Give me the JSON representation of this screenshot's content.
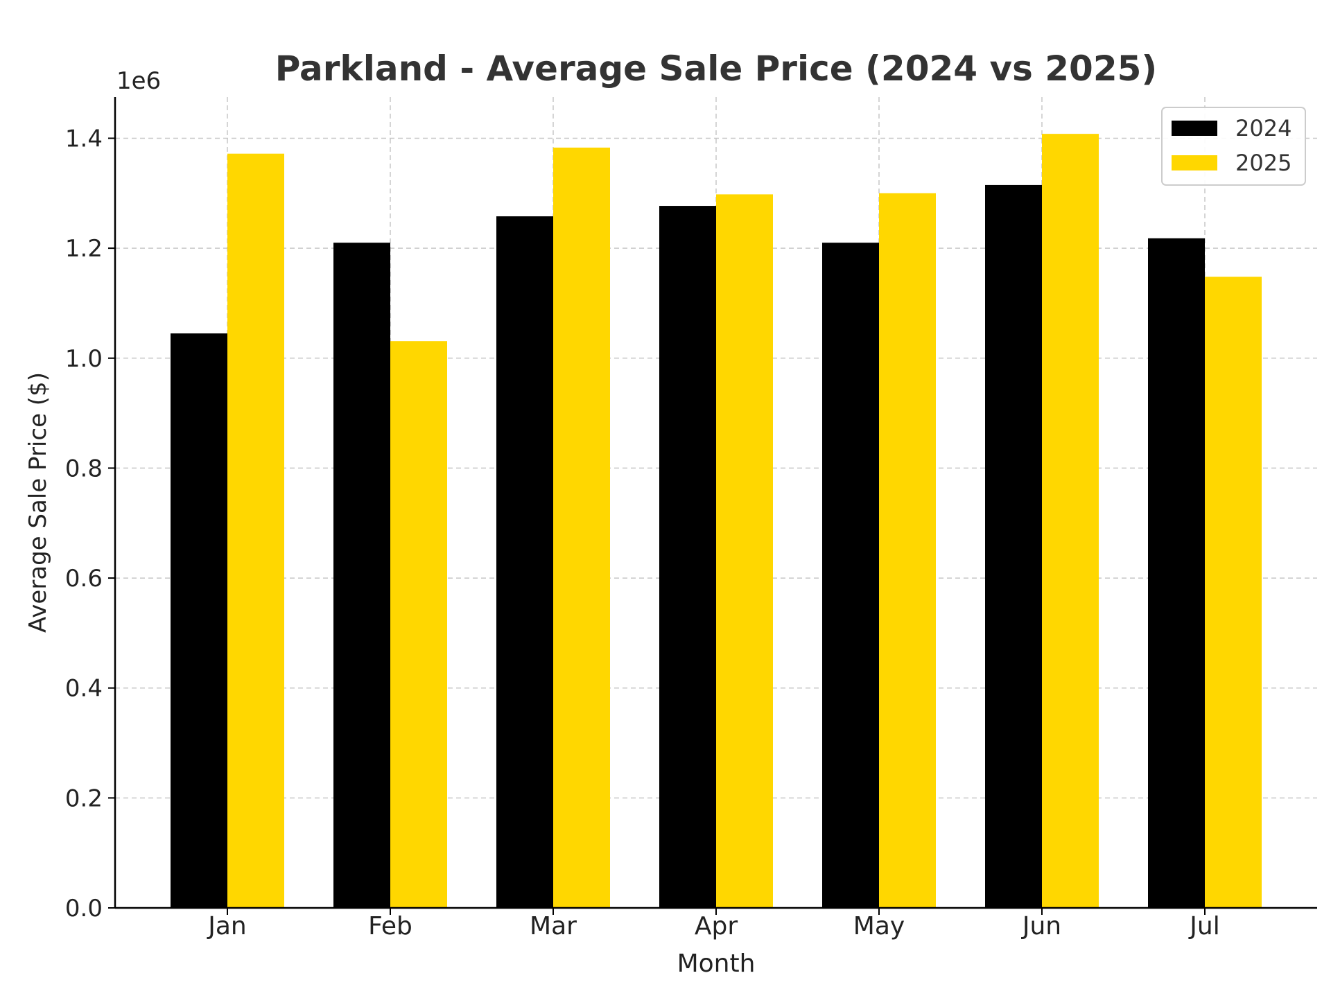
{
  "chart_data": {
    "type": "bar",
    "title": "Parkland - Average Sale Price (2024 vs 2025)",
    "xlabel": "Month",
    "ylabel": "Average Sale Price ($)",
    "y_offset_label": "1e6",
    "categories": [
      "Jan",
      "Feb",
      "Mar",
      "Apr",
      "May",
      "Jun",
      "Jul"
    ],
    "series": [
      {
        "name": "2024",
        "color": "#000000",
        "values": [
          1045000,
          1210000,
          1258000,
          1277000,
          1210000,
          1315000,
          1218000
        ]
      },
      {
        "name": "2025",
        "color": "#FFD700",
        "values": [
          1372000,
          1031000,
          1383000,
          1298000,
          1300000,
          1408000,
          1148000
        ]
      }
    ],
    "ylim": [
      0,
      1475000
    ],
    "yticks": [
      0,
      200000,
      400000,
      600000,
      800000,
      1000000,
      1200000,
      1400000
    ],
    "ytick_labels": [
      "0.0",
      "0.2",
      "0.4",
      "0.6",
      "0.8",
      "1.0",
      "1.2",
      "1.4"
    ],
    "grid": true,
    "legend_position": "top-right"
  }
}
